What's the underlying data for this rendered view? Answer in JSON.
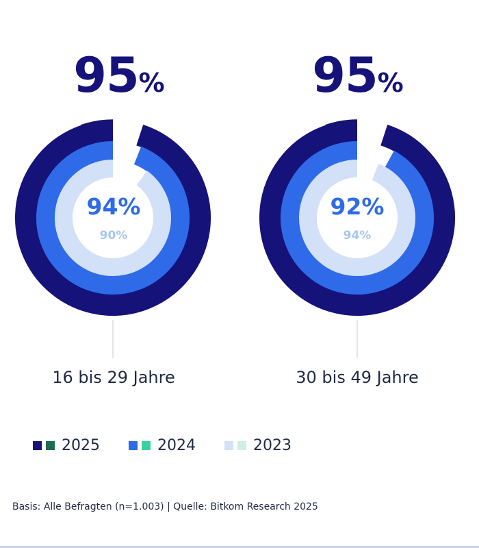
{
  "colors": {
    "y2025": "#15127a",
    "y2024": "#2f6be8",
    "y2023": "#d3e1f8",
    "legend_alt_2025": "#1d6b50",
    "legend_alt_2024": "#3cd0a0",
    "legend_alt_2023": "#cfeee6",
    "text": "#1f2a44"
  },
  "chart_data": {
    "type": "donut",
    "series_years": [
      "2025",
      "2024",
      "2023"
    ],
    "groups": [
      {
        "label": "16 bis 29 Jahre",
        "headline": "95",
        "headline_unit": "%",
        "inner_main": "94%",
        "inner_prev": "90%",
        "values": {
          "2025": 95,
          "2024": 94,
          "2023": 90
        }
      },
      {
        "label": "30 bis 49 Jahre",
        "headline": "95",
        "headline_unit": "%",
        "inner_main": "92%",
        "inner_prev": "94%",
        "values": {
          "2025": 95,
          "2024": 92,
          "2023": 94
        }
      }
    ]
  },
  "legend": [
    {
      "label": "2025"
    },
    {
      "label": "2024"
    },
    {
      "label": "2023"
    }
  ],
  "footer": "Basis: Alle Befragten (n=1.003) | Quelle: Bitkom Research 2025"
}
